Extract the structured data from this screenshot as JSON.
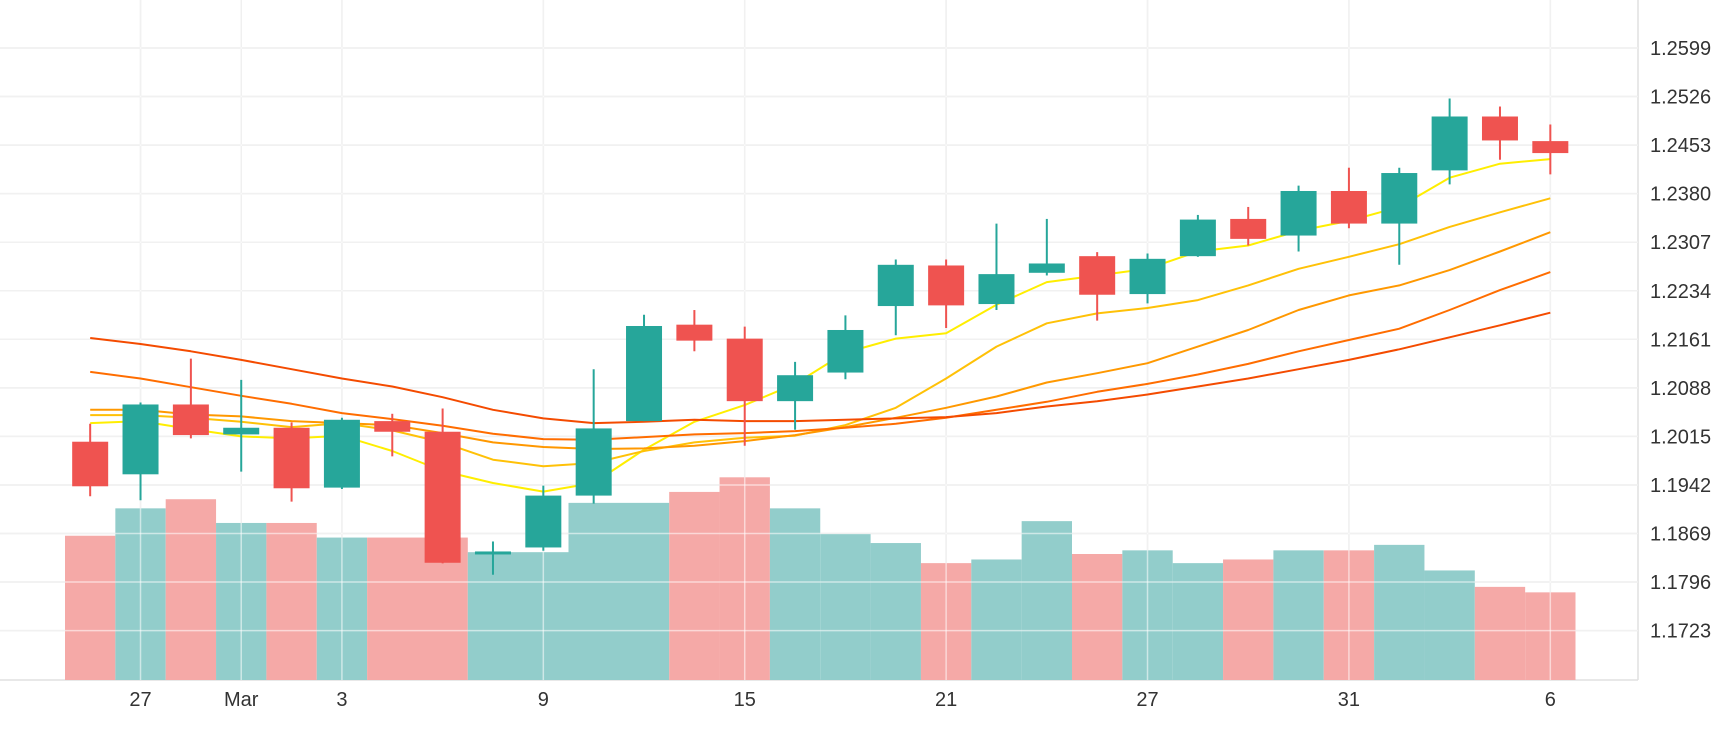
{
  "chart_data": {
    "type": "candlestick",
    "colors": {
      "up": "#26a69a",
      "down": "#ef5350",
      "volume_up": "#92cdcb",
      "volume_down": "#f5a9a7",
      "grid": "#e0e0e0",
      "axis_text": "#333333"
    },
    "y_axis": {
      "ticks": [
        "1.2599",
        "1.2526",
        "1.2453",
        "1.2380",
        "1.2307",
        "1.2234",
        "1.2161",
        "1.2088",
        "1.2015",
        "1.1942",
        "1.1869",
        "1.1796",
        "1.1723"
      ],
      "range": [
        1.165,
        1.2665
      ]
    },
    "x_axis": {
      "ticks": [
        {
          "label": "27",
          "index": 1.5
        },
        {
          "label": "Mar",
          "index": 3.5
        },
        {
          "label": "3",
          "index": 5.5
        },
        {
          "label": "9",
          "index": 9.5
        },
        {
          "label": "15",
          "index": 13.5
        },
        {
          "label": "21",
          "index": 17.5
        },
        {
          "label": "27",
          "index": 21.5
        },
        {
          "label": "31",
          "index": 25.5
        },
        {
          "label": "6",
          "index": 29.5
        }
      ]
    },
    "candles": [
      {
        "o": 1.2007,
        "h": 1.2034,
        "l": 1.1925,
        "c": 1.194
      },
      {
        "o": 1.1958,
        "h": 1.2066,
        "l": 1.1919,
        "c": 1.2063
      },
      {
        "o": 1.2063,
        "h": 1.2132,
        "l": 1.2012,
        "c": 1.2017
      },
      {
        "o": 1.2018,
        "h": 1.21,
        "l": 1.1962,
        "c": 1.2028
      },
      {
        "o": 1.2028,
        "h": 1.2036,
        "l": 1.1917,
        "c": 1.1937
      },
      {
        "o": 1.1938,
        "h": 1.2043,
        "l": 1.1936,
        "c": 1.204
      },
      {
        "o": 1.2038,
        "h": 1.2049,
        "l": 1.1985,
        "c": 1.2022
      },
      {
        "o": 1.2022,
        "h": 1.2057,
        "l": 1.1824,
        "c": 1.1825
      },
      {
        "o": 1.1839,
        "h": 1.1857,
        "l": 1.1807,
        "c": 1.1842
      },
      {
        "o": 1.1848,
        "h": 1.1941,
        "l": 1.1843,
        "c": 1.1926
      },
      {
        "o": 1.1926,
        "h": 1.2116,
        "l": 1.1914,
        "c": 1.2027
      },
      {
        "o": 1.2038,
        "h": 1.2198,
        "l": 1.2038,
        "c": 1.2181
      },
      {
        "o": 1.2183,
        "h": 1.2205,
        "l": 1.2143,
        "c": 1.2159
      },
      {
        "o": 1.2162,
        "h": 1.218,
        "l": 1.2001,
        "c": 1.2068
      },
      {
        "o": 1.2068,
        "h": 1.2127,
        "l": 1.2025,
        "c": 1.2107
      },
      {
        "o": 1.2111,
        "h": 1.2197,
        "l": 1.2101,
        "c": 1.2175
      },
      {
        "o": 1.2211,
        "h": 1.2281,
        "l": 1.2167,
        "c": 1.2273
      },
      {
        "o": 1.2272,
        "h": 1.2281,
        "l": 1.2178,
        "c": 1.2212
      },
      {
        "o": 1.2214,
        "h": 1.2335,
        "l": 1.2205,
        "c": 1.2259
      },
      {
        "o": 1.2261,
        "h": 1.2342,
        "l": 1.2257,
        "c": 1.2275
      },
      {
        "o": 1.2286,
        "h": 1.2292,
        "l": 1.2189,
        "c": 1.2228
      },
      {
        "o": 1.2229,
        "h": 1.229,
        "l": 1.2215,
        "c": 1.2282
      },
      {
        "o": 1.2286,
        "h": 1.2348,
        "l": 1.2285,
        "c": 1.2341
      },
      {
        "o": 1.2342,
        "h": 1.236,
        "l": 1.2302,
        "c": 1.2312
      },
      {
        "o": 1.2317,
        "h": 1.2392,
        "l": 1.2293,
        "c": 1.2384
      },
      {
        "o": 1.2384,
        "h": 1.2419,
        "l": 1.2328,
        "c": 1.2335
      },
      {
        "o": 1.2335,
        "h": 1.2419,
        "l": 1.2273,
        "c": 1.2411
      },
      {
        "o": 1.2415,
        "h": 1.2523,
        "l": 1.2394,
        "c": 1.2496
      },
      {
        "o": 1.2496,
        "h": 1.2511,
        "l": 1.2431,
        "c": 1.246
      },
      {
        "o": 1.2459,
        "h": 1.2484,
        "l": 1.2409,
        "c": 1.2441
      }
    ],
    "volume_bars": [
      {
        "from": 0,
        "to": 1,
        "value": 0.79,
        "dir": "down"
      },
      {
        "from": 1,
        "to": 2,
        "value": 0.94,
        "dir": "up"
      },
      {
        "from": 2,
        "to": 3,
        "value": 0.99,
        "dir": "down"
      },
      {
        "from": 3,
        "to": 4,
        "value": 0.86,
        "dir": "up"
      },
      {
        "from": 4,
        "to": 5,
        "value": 0.86,
        "dir": "down"
      },
      {
        "from": 5,
        "to": 6,
        "value": 0.78,
        "dir": "up"
      },
      {
        "from": 6,
        "to": 8,
        "value": 0.78,
        "dir": "down"
      },
      {
        "from": 8,
        "to": 10,
        "value": 0.7,
        "dir": "up"
      },
      {
        "from": 10,
        "to": 12,
        "value": 0.97,
        "dir": "up"
      },
      {
        "from": 12,
        "to": 13,
        "value": 1.03,
        "dir": "down"
      },
      {
        "from": 13,
        "to": 14,
        "value": 1.11,
        "dir": "down"
      },
      {
        "from": 14,
        "to": 15,
        "value": 0.94,
        "dir": "up"
      },
      {
        "from": 15,
        "to": 16,
        "value": 0.8,
        "dir": "up"
      },
      {
        "from": 16,
        "to": 17,
        "value": 0.75,
        "dir": "up"
      },
      {
        "from": 17,
        "to": 18,
        "value": 0.64,
        "dir": "down"
      },
      {
        "from": 18,
        "to": 19,
        "value": 0.66,
        "dir": "up"
      },
      {
        "from": 19,
        "to": 20,
        "value": 0.87,
        "dir": "up"
      },
      {
        "from": 20,
        "to": 21,
        "value": 0.69,
        "dir": "down"
      },
      {
        "from": 21,
        "to": 22,
        "value": 0.71,
        "dir": "up"
      },
      {
        "from": 22,
        "to": 23,
        "value": 0.64,
        "dir": "up"
      },
      {
        "from": 23,
        "to": 24,
        "value": 0.66,
        "dir": "down"
      },
      {
        "from": 24,
        "to": 25,
        "value": 0.71,
        "dir": "up"
      },
      {
        "from": 25,
        "to": 26,
        "value": 0.71,
        "dir": "down"
      },
      {
        "from": 26,
        "to": 27,
        "value": 0.74,
        "dir": "up"
      },
      {
        "from": 27,
        "to": 28,
        "value": 0.6,
        "dir": "up"
      },
      {
        "from": 28,
        "to": 29,
        "value": 0.51,
        "dir": "down"
      },
      {
        "from": 29,
        "to": 30,
        "value": 0.48,
        "dir": "down"
      }
    ],
    "volume_scale_max": 1.15,
    "moving_averages": [
      {
        "color": "#ffee00",
        "values": [
          1.2035,
          1.2038,
          1.2026,
          1.2015,
          1.2012,
          1.2016,
          1.1993,
          1.1963,
          1.1945,
          1.1932,
          1.1945,
          1.1995,
          1.2037,
          1.2062,
          1.2094,
          1.2141,
          1.2162,
          1.217,
          1.2213,
          1.2247,
          1.2257,
          1.2267,
          1.2293,
          1.2302,
          1.2324,
          1.2339,
          1.236,
          1.2404,
          1.2425,
          1.2432
        ]
      },
      {
        "color": "#ffc107",
        "values": [
          1.2047,
          1.2047,
          1.2043,
          1.2037,
          1.2029,
          1.2035,
          1.2024,
          1.2006,
          1.198,
          1.197,
          1.1975,
          1.1993,
          1.2006,
          1.2013,
          1.2016,
          1.2032,
          1.2058,
          1.2102,
          1.215,
          1.2185,
          1.22,
          1.2208,
          1.222,
          1.2242,
          1.2267,
          1.2285,
          1.2304,
          1.233,
          1.2352,
          1.2373
        ]
      },
      {
        "color": "#ff9800",
        "values": [
          1.2055,
          1.2055,
          1.2048,
          1.2045,
          1.2038,
          1.2035,
          1.2032,
          1.202,
          1.2006,
          1.1999,
          1.1996,
          1.1997,
          1.2001,
          1.2008,
          1.2017,
          1.2029,
          1.2043,
          1.2058,
          1.2075,
          1.2096,
          1.211,
          1.2125,
          1.215,
          1.2175,
          1.2205,
          1.2227,
          1.2242,
          1.2265,
          1.2293,
          1.2322
        ]
      },
      {
        "color": "#ff6d00",
        "values": [
          1.2112,
          1.2102,
          1.2089,
          1.2076,
          1.2064,
          1.205,
          1.2041,
          1.2031,
          1.2019,
          1.2011,
          1.201,
          1.2014,
          1.2018,
          1.202,
          1.2023,
          1.2028,
          1.2034,
          1.2043,
          1.2055,
          1.2067,
          1.2082,
          1.2094,
          1.2108,
          1.2124,
          1.2143,
          1.216,
          1.2177,
          1.2205,
          1.2235,
          1.2262
        ]
      },
      {
        "color": "#f44b00",
        "values": [
          1.2163,
          1.2154,
          1.2143,
          1.213,
          1.2116,
          1.2102,
          1.209,
          1.2074,
          1.2055,
          1.2042,
          1.2035,
          1.2037,
          1.204,
          1.2038,
          1.2038,
          1.204,
          1.2042,
          1.2044,
          1.205,
          1.206,
          1.2068,
          1.2078,
          1.209,
          1.2102,
          1.2116,
          1.213,
          1.2146,
          1.2164,
          1.2182,
          1.2201
        ]
      }
    ]
  }
}
